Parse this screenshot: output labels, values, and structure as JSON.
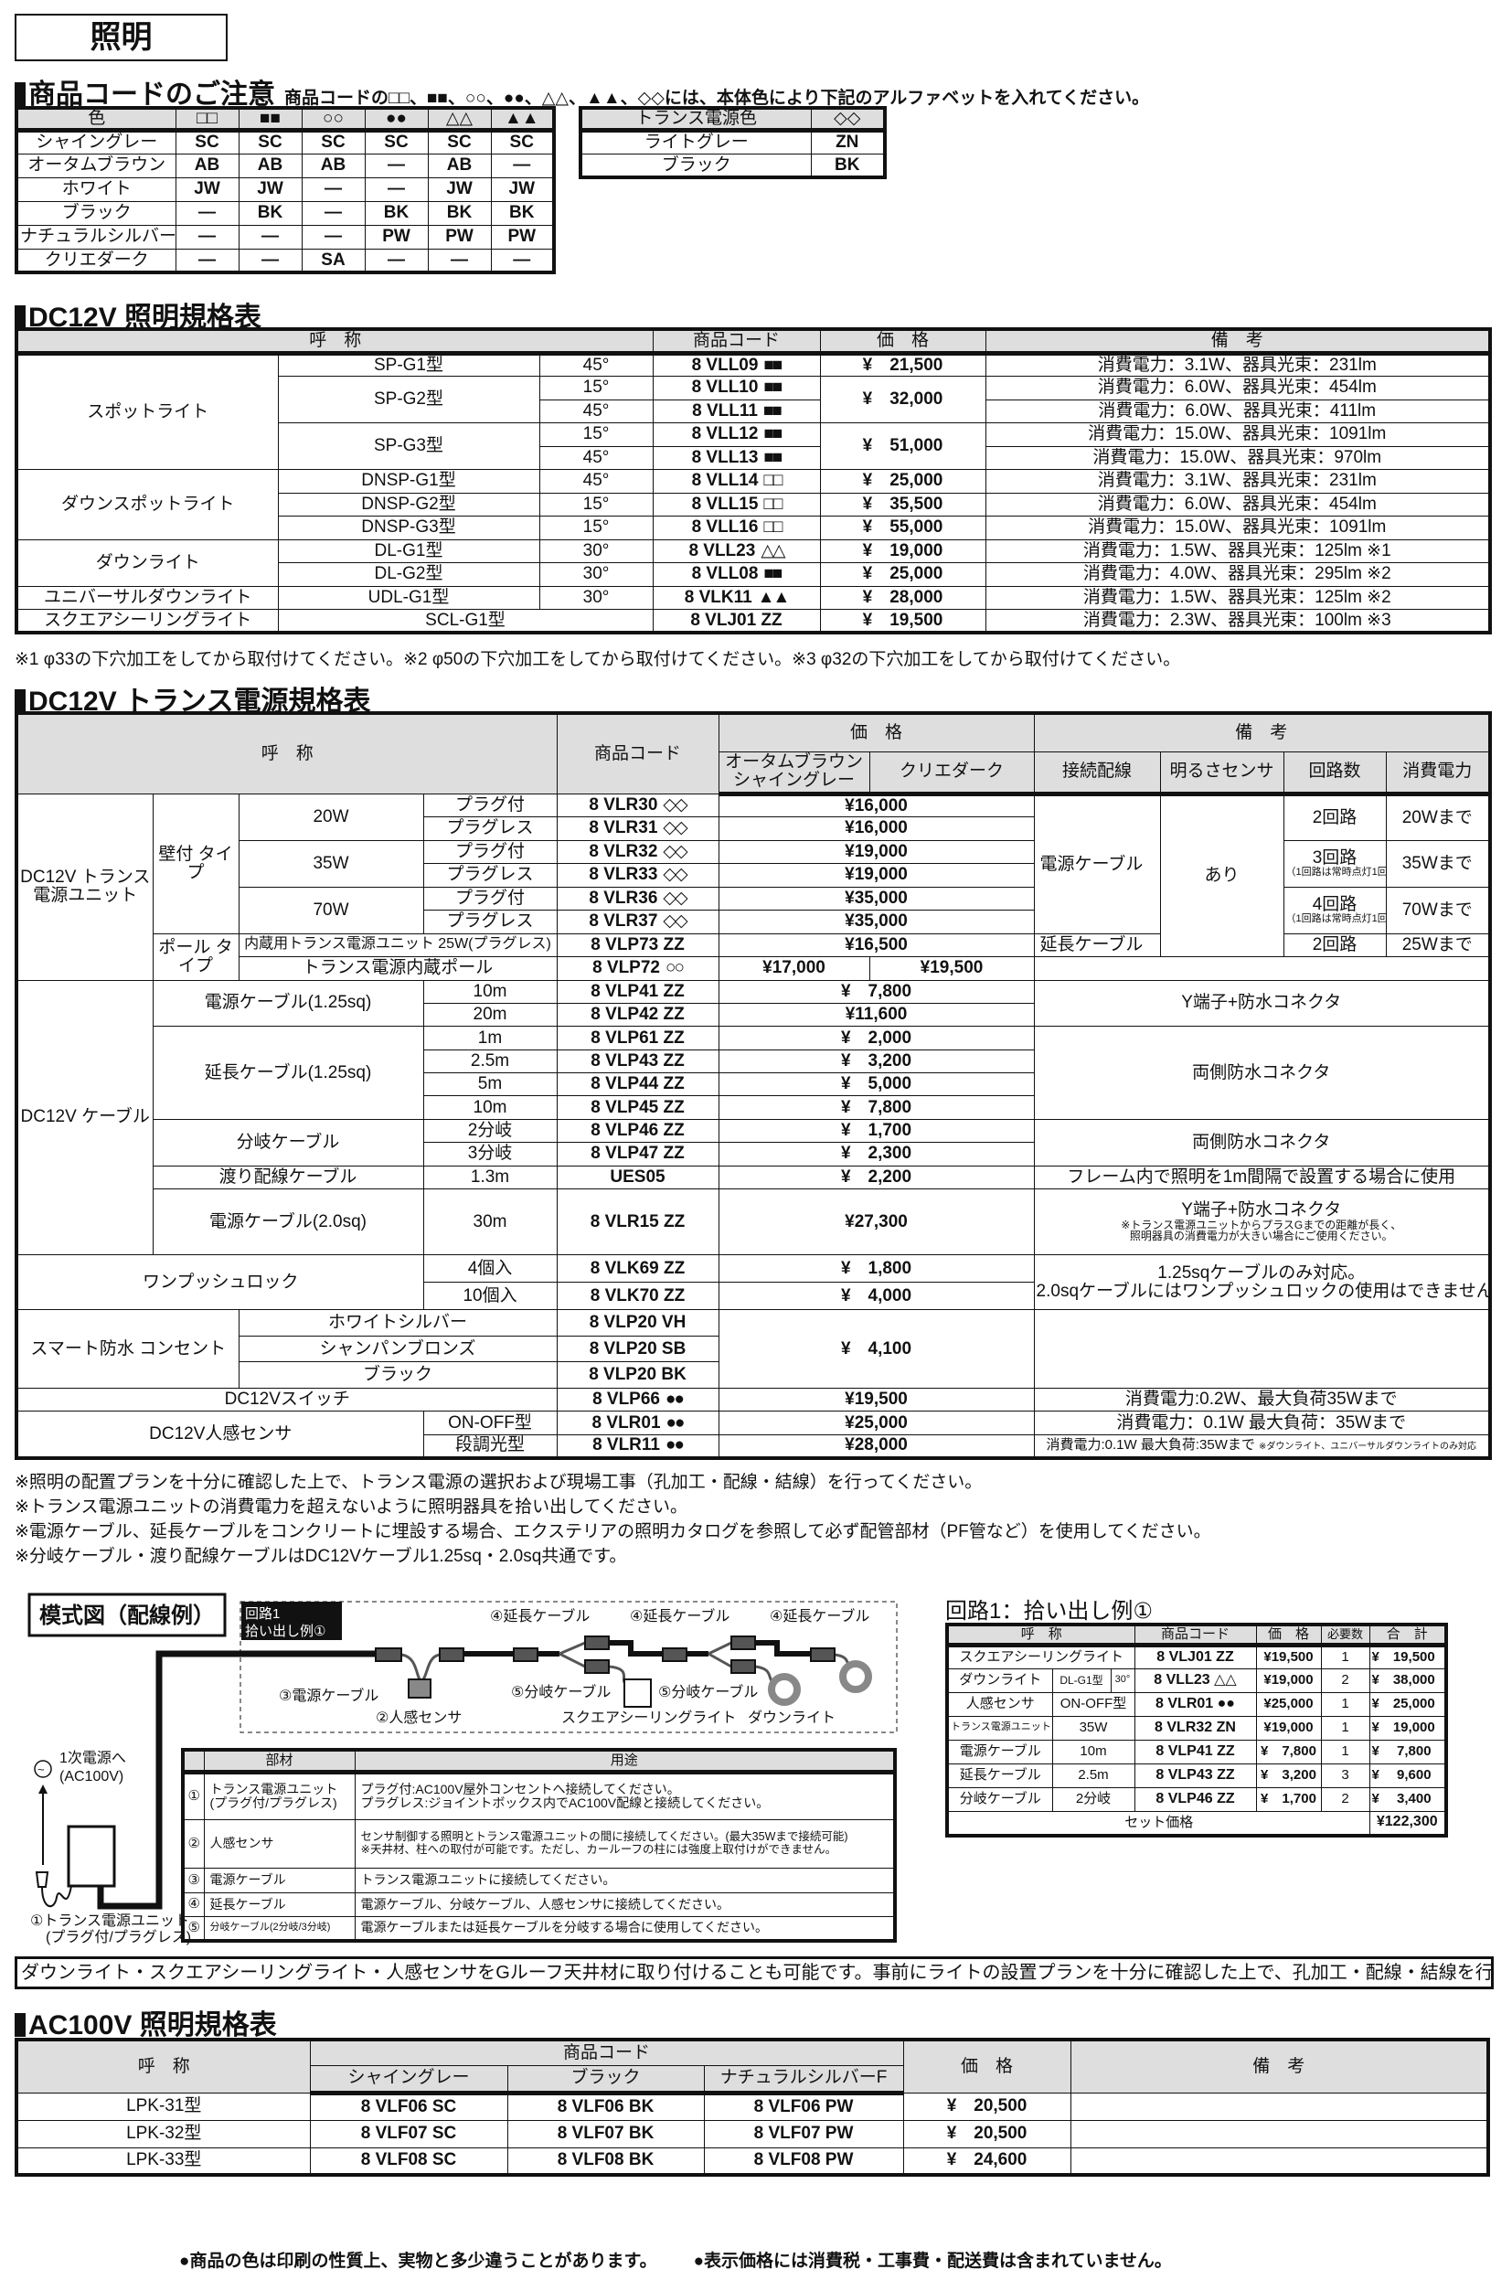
{
  "page_title": "照明",
  "notice": {
    "heading": "商品コードのご注意",
    "sub": "商品コードの□□、■■、○○、●●、△△、▲▲、◇◇には、本体色により下記のアルファベットを入れてください。",
    "color_table": {
      "header": [
        "色",
        "□□",
        "■■",
        "○○",
        "●●",
        "△△",
        "▲▲"
      ],
      "rows": [
        [
          "シャイングレー",
          "SC",
          "SC",
          "SC",
          "SC",
          "SC",
          "SC"
        ],
        [
          "オータムブラウン",
          "AB",
          "AB",
          "AB",
          "—",
          "AB",
          "—"
        ],
        [
          "ホワイト",
          "JW",
          "JW",
          "—",
          "—",
          "JW",
          "JW"
        ],
        [
          "ブラック",
          "—",
          "BK",
          "—",
          "BK",
          "BK",
          "BK"
        ],
        [
          "ナチュラルシルバーF",
          "—",
          "—",
          "—",
          "PW",
          "PW",
          "PW"
        ],
        [
          "クリエダーク",
          "—",
          "—",
          "SA",
          "—",
          "—",
          "—"
        ]
      ]
    },
    "trans_color_table": {
      "header": [
        "トランス電源色",
        "◇◇"
      ],
      "rows": [
        [
          "ライトグレー",
          "ZN"
        ],
        [
          "ブラック",
          "BK"
        ]
      ]
    }
  },
  "dc12v": {
    "heading": "DC12V 照明規格表",
    "header": {
      "name": "呼　称",
      "code": "商品コード",
      "price": "価　格",
      "note": "備　考"
    },
    "rows": [
      {
        "group": "スポットライト",
        "model": "SP-G1型",
        "angle": "45°",
        "code": "8 VLL09",
        "mark": "■■",
        "price": "¥　21,500",
        "note": "消費電力：3.1W、器具光束：231lm"
      },
      {
        "model": "SP-G2型",
        "angle": "15°",
        "code": "8 VLL10",
        "mark": "■■",
        "price": "¥　32,000",
        "note": "消費電力：6.0W、器具光束：454lm"
      },
      {
        "angle": "45°",
        "code": "8 VLL11",
        "mark": "■■",
        "note": "消費電力：6.0W、器具光束：411lm"
      },
      {
        "model": "SP-G3型",
        "angle": "15°",
        "code": "8 VLL12",
        "mark": "■■",
        "price": "¥　51,000",
        "note": "消費電力：15.0W、器具光束：1091lm"
      },
      {
        "angle": "45°",
        "code": "8 VLL13",
        "mark": "■■",
        "note": "消費電力：15.0W、器具光束：970lm"
      },
      {
        "group": "ダウンスポットライト",
        "model": "DNSP-G1型",
        "angle": "45°",
        "code": "8 VLL14",
        "mark": "□□",
        "price": "¥　25,000",
        "note": "消費電力：3.1W、器具光束：231lm"
      },
      {
        "model": "DNSP-G2型",
        "angle": "15°",
        "code": "8 VLL15",
        "mark": "□□",
        "price": "¥　35,500",
        "note": "消費電力：6.0W、器具光束：454lm"
      },
      {
        "model": "DNSP-G3型",
        "angle": "15°",
        "code": "8 VLL16",
        "mark": "□□",
        "price": "¥　55,000",
        "note": "消費電力：15.0W、器具光束：1091lm"
      },
      {
        "group": "ダウンライト",
        "model": "DL-G1型",
        "angle": "30°",
        "code": "8 VLL23",
        "mark": "△△",
        "price": "¥　19,000",
        "note": "消費電力：1.5W、器具光束：125lm ※1"
      },
      {
        "model": "DL-G2型",
        "angle": "30°",
        "code": "8 VLL08",
        "mark": "■■",
        "price": "¥　25,000",
        "note": "消費電力：4.0W、器具光束：295lm ※2"
      },
      {
        "group": "ユニバーサルダウンライト",
        "model": "UDL-G1型",
        "angle": "30°",
        "code": "8 VLK11",
        "mark": "▲▲",
        "price": "¥　28,000",
        "note": "消費電力：1.5W、器具光束：125lm ※2"
      },
      {
        "group": "スクエアシーリングライト",
        "model": "SCL-G1型",
        "code": "8 VLJ01 ZZ",
        "price": "¥　19,500",
        "note": "消費電力：2.3W、器具光束：100lm ※3"
      }
    ],
    "footnote": "※1 φ33の下穴加工をしてから取付けてください。※2 φ50の下穴加工をしてから取付けてください。※3 φ32の下穴加工をしてから取付けてください。"
  },
  "trans": {
    "heading": "DC12V トランス電源規格表",
    "header": {
      "name": "呼　称",
      "code": "商品コード",
      "price": "価　格",
      "price_a": "オータムブラウン シャイングレー",
      "price_b": "クリエダーク",
      "note": "備　考",
      "wiring": "接続配線",
      "sensor": "明るさセンサ",
      "circuits": "回路数",
      "power": "消費電力"
    },
    "unit_group": "DC12V トランス電源ユニット",
    "wall_type": "壁付 タイプ",
    "pole_type": "ポール タイプ",
    "cable_group": "DC12V ケーブル",
    "rows": [
      {
        "name": "20W",
        "plug": "プラグ付",
        "code": "8 VLR30",
        "mark": "◇◇",
        "price": "¥16,000",
        "wiring": "電源ケーブル",
        "sensor": "あり",
        "circuits": "2回路",
        "power": "20Wまで"
      },
      {
        "plug": "プラグレス",
        "code": "8 VLR31",
        "mark": "◇◇",
        "price": "¥16,000"
      },
      {
        "name": "35W",
        "plug": "プラグ付",
        "code": "8 VLR32",
        "mark": "◇◇",
        "price": "¥19,000",
        "circuits": "3回路",
        "circuits_note": "（1回路は常時点灯1回路）",
        "power": "35Wまで"
      },
      {
        "plug": "プラグレス",
        "code": "8 VLR33",
        "mark": "◇◇",
        "price": "¥19,000"
      },
      {
        "name": "70W",
        "plug": "プラグ付",
        "code": "8 VLR36",
        "mark": "◇◇",
        "price": "¥35,000",
        "circuits": "4回路",
        "circuits_note": "（1回路は常時点灯1回路）",
        "power": "70Wまで"
      },
      {
        "plug": "プラグレス",
        "code": "8 VLR37",
        "mark": "◇◇",
        "price": "¥35,000"
      },
      {
        "name": "内蔵用トランス電源ユニット 25W(プラグレス)",
        "code": "8 VLP73 ZZ",
        "price": "¥16,500",
        "wiring": "延長ケーブル",
        "circuits": "2回路",
        "power": "25Wまで"
      },
      {
        "name": "トランス電源内蔵ポール",
        "code": "8 VLP72",
        "mark": "○○",
        "price_a": "¥17,000",
        "price_b": "¥19,500"
      },
      {
        "name": "電源ケーブル(1.25sq)",
        "len": "10m",
        "code": "8 VLP41 ZZ",
        "price": "¥　7,800",
        "note": "Y端子+防水コネクタ"
      },
      {
        "len": "20m",
        "code": "8 VLP42 ZZ",
        "price": "¥11,600"
      },
      {
        "name": "延長ケーブル(1.25sq)",
        "len": "1m",
        "code": "8 VLP61 ZZ",
        "price": "¥　2,000",
        "note": "両側防水コネクタ"
      },
      {
        "len": "2.5m",
        "code": "8 VLP43 ZZ",
        "price": "¥　3,200"
      },
      {
        "len": "5m",
        "code": "8 VLP44 ZZ",
        "price": "¥　5,000"
      },
      {
        "len": "10m",
        "code": "8 VLP45 ZZ",
        "price": "¥　7,800"
      },
      {
        "name": "分岐ケーブル",
        "len": "2分岐",
        "code": "8 VLP46 ZZ",
        "price": "¥　1,700",
        "note": "両側防水コネクタ"
      },
      {
        "len": "3分岐",
        "code": "8 VLP47 ZZ",
        "price": "¥　2,300"
      },
      {
        "name": "渡り配線ケーブル",
        "len": "1.3m",
        "code": "UES05",
        "price": "¥　2,200",
        "note": "フレーム内で照明を1m間隔で設置する場合に使用"
      },
      {
        "name": "電源ケーブル(2.0sq)",
        "len": "30m",
        "code": "8 VLR15 ZZ",
        "price": "¥27,300",
        "note": "Y端子+防水コネクタ",
        "note_small1": "※トランス電源ユニットからプラスGまでの距離が長く、",
        "note_small2": "照明器具の消費電力が大きい場合にご使用ください。"
      },
      {
        "name": "ワンプッシュロック",
        "len": "4個入",
        "code": "8 VLK69 ZZ",
        "price": "¥　1,800",
        "note1": "1.25sqケーブルのみ対応。",
        "note2": "2.0sqケーブルにはワンプッシュロックの使用はできません。"
      },
      {
        "len": "10個入",
        "code": "8 VLK70 ZZ",
        "price": "¥　4,000"
      },
      {
        "group": "スマート防水 コンセント",
        "name": "ホワイトシルバー",
        "code": "8 VLP20 VH",
        "price": "¥　4,100"
      },
      {
        "name": "シャンパンブロンズ",
        "code": "8 VLP20 SB"
      },
      {
        "name": "ブラック",
        "code": "8 VLP20 BK"
      },
      {
        "name": "DC12Vスイッチ",
        "code": "8 VLP66",
        "mark": "●●",
        "price": "¥19,500",
        "note": "消費電力:0.2W、最大負荷35Wまで"
      },
      {
        "name": "DC12V人感センサ",
        "len": "ON-OFF型",
        "code": "8 VLR01",
        "mark": "●●",
        "price": "¥25,000",
        "note": "消費電力：0.1W 最大負荷：35Wまで"
      },
      {
        "len": "段調光型",
        "code": "8 VLR11",
        "mark": "●●",
        "price": "¥28,000",
        "note": "消費電力:0.1W 最大負荷:35Wまで",
        "note_small": "※ダウンライト、ユニバーサルダウンライトのみ対応"
      }
    ],
    "notes": [
      "※照明の配置プランを十分に確認した上で、トランス電源の選択および現場工事（孔加工・配線・結線）を行ってください。",
      "※トランス電源ユニットの消費電力を超えないように照明器具を拾い出してください。",
      "※電源ケーブル、延長ケーブルをコンクリートに埋設する場合、エクステリアの照明カタログを参照して必ず配管部材（PF管など）を使用してください。",
      "※分岐ケーブル・渡り配線ケーブルはDC12Vケーブル1.25sq・2.0sq共通です。"
    ]
  },
  "diagram": {
    "title": "模式図（配線例）",
    "circuit_label1": "回路1",
    "circuit_label2": "拾い出し例①",
    "labels": {
      "ext1": "④延長ケーブル",
      "ext2": "④延長ケーブル",
      "ext3": "④延長ケーブル",
      "power_cable": "③電源ケーブル",
      "sensor": "②人感センサ",
      "branch1": "⑤分岐ケーブル",
      "branch2": "⑤分岐ケーブル",
      "square_light": "スクエアシーリングライト",
      "downlight": "ダウンライト",
      "primary1": "1次電源へ",
      "primary2": "(AC100V)",
      "unit1": "①トランス電源ユニット",
      "unit2": "(プラグ付/プラグレス)"
    },
    "parts_table": {
      "header": {
        "part": "部材",
        "use": "用途"
      },
      "rows": [
        {
          "num": "①",
          "part1": "トランス電源ユニット",
          "part2": "(プラグ付/プラグレス)",
          "use1": "プラグ付:AC100V屋外コンセントへ接続してください。",
          "use2": "プラグレス:ジョイントボックス内でAC100V配線と接続してください。"
        },
        {
          "num": "②",
          "part1": "人感センサ",
          "use1": "センサ制御する照明とトランス電源ユニットの間に接続してください。(最大35Wまで接続可能)",
          "use2": "※天井材、柱への取付が可能です。ただし、カールーフの柱には強度上取付けができません。"
        },
        {
          "num": "③",
          "part1": "電源ケーブル",
          "use1": "トランス電源ユニットに接続してください。"
        },
        {
          "num": "④",
          "part1": "延長ケーブル",
          "use1": "電源ケーブル、分岐ケーブル、人感センサに接続してください。"
        },
        {
          "num": "⑤",
          "part1": "分岐ケーブル(2分岐/3分岐)",
          "use1": "電源ケーブルまたは延長ケーブルを分岐する場合に使用してください。"
        }
      ]
    }
  },
  "pickup": {
    "title": "回路1：拾い出し例①",
    "header": {
      "name": "呼　称",
      "code": "商品コード",
      "price": "価　格",
      "qty": "必要数",
      "total": "合　計"
    },
    "rows": [
      {
        "name": "スクエアシーリングライト",
        "code": "8 VLJ01 ZZ",
        "price": "¥19,500",
        "qty": "1",
        "total": "¥　19,500"
      },
      {
        "name": "ダウンライト",
        "model": "DL-G1型",
        "angle": "30°",
        "code": "8 VLL23 △△",
        "price": "¥19,000",
        "qty": "2",
        "total": "¥　38,000"
      },
      {
        "name": "人感センサ",
        "model": "ON-OFF型",
        "code": "8 VLR01 ●●",
        "price": "¥25,000",
        "qty": "1",
        "total": "¥　25,000"
      },
      {
        "name": "トランス電源ユニット",
        "model": "35W",
        "code": "8 VLR32 ZN",
        "price": "¥19,000",
        "qty": "1",
        "total": "¥　19,000"
      },
      {
        "name": "電源ケーブル",
        "model": "10m",
        "code": "8 VLP41 ZZ",
        "price": "¥　7,800",
        "qty": "1",
        "total": "¥　 7,800"
      },
      {
        "name": "延長ケーブル",
        "model": "2.5m",
        "code": "8 VLP43 ZZ",
        "price": "¥　3,200",
        "qty": "3",
        "total": "¥　 9,600"
      },
      {
        "name": "分岐ケーブル",
        "model": "2分岐",
        "code": "8 VLP46 ZZ",
        "price": "¥　1,700",
        "qty": "2",
        "total": "¥　 3,400"
      }
    ],
    "set_label": "セット価格",
    "set_total": "¥122,300"
  },
  "banner": "ダウンライト・スクエアシーリングライト・人感センサをGルーフ天井材に取り付けることも可能です。事前にライトの設置プランを十分に確認した上で、孔加工・配線・結線を行ってください。",
  "ac100v": {
    "heading": "AC100V 照明規格表",
    "header": {
      "name": "呼　称",
      "code": "商品コード",
      "c1": "シャイングレー",
      "c2": "ブラック",
      "c3": "ナチュラルシルバーF",
      "price": "価　格",
      "note": "備　考"
    },
    "rows": [
      {
        "name": "LPK-31型",
        "c1": "8 VLF06 SC",
        "c2": "8 VLF06 BK",
        "c3": "8 VLF06 PW",
        "price": "¥　20,500"
      },
      {
        "name": "LPK-32型",
        "c1": "8 VLF07 SC",
        "c2": "8 VLF07 BK",
        "c3": "8 VLF07 PW",
        "price": "¥　20,500"
      },
      {
        "name": "LPK-33型",
        "c1": "8 VLF08 SC",
        "c2": "8 VLF08 BK",
        "c3": "8 VLF08 PW",
        "price": "¥　24,600"
      }
    ]
  },
  "footer": [
    "●商品の色は印刷の性質上、実物と多少違うことがあります。",
    "●表示価格には消費税・工事費・配送費は含まれていません。"
  ]
}
